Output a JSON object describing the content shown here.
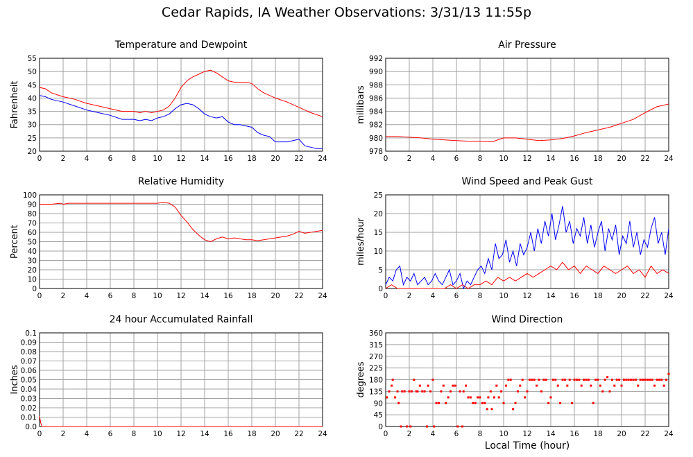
{
  "title": "Cedar Rapids, IA Weather Observations: 3/31/13 11:55p",
  "xaxis_label": "Local Time (hour)",
  "colors": {
    "red": "#ff0000",
    "blue": "#0000ff",
    "grid": "#a0a0a0"
  },
  "chart_data": [
    {
      "id": "temp",
      "type": "line",
      "title": "Temperature and Dewpoint",
      "ylabel": "Fahrenheit",
      "xlim": [
        0,
        24
      ],
      "ylim": [
        20,
        55
      ],
      "yticks": [
        20,
        25,
        30,
        35,
        40,
        45,
        50,
        55
      ],
      "xticks": [
        0,
        2,
        4,
        6,
        8,
        10,
        12,
        14,
        16,
        18,
        20,
        22,
        24
      ],
      "series": [
        {
          "color": "#ff0000",
          "x": [
            0,
            0.5,
            1,
            2,
            3,
            4,
            5,
            6,
            7,
            8,
            8.5,
            9,
            9.5,
            10,
            10.5,
            11,
            11.5,
            12,
            12.5,
            13,
            13.5,
            14,
            14.5,
            15,
            15.5,
            16,
            16.5,
            17,
            17.5,
            18,
            18.5,
            19,
            20,
            21,
            22,
            23,
            24
          ],
          "y": [
            44,
            43.5,
            42,
            40.5,
            39.5,
            38,
            37,
            36,
            35,
            35,
            34.5,
            35,
            34.5,
            35,
            35.5,
            37,
            40,
            44,
            46.5,
            48,
            49,
            50,
            50.5,
            49.5,
            48,
            46.5,
            46,
            46,
            46,
            45.5,
            43.5,
            42,
            40,
            38.5,
            36.5,
            34.5,
            33
          ]
        },
        {
          "color": "#0000ff",
          "x": [
            0,
            0.5,
            1,
            2,
            3,
            4,
            5,
            6,
            7,
            8,
            8.5,
            9,
            9.5,
            10,
            10.5,
            11,
            11.5,
            12,
            12.5,
            13,
            13.5,
            14,
            14.5,
            15,
            15.5,
            16,
            16.5,
            17,
            17.5,
            18,
            18.5,
            19,
            19.5,
            20,
            20.5,
            21,
            21.5,
            22,
            22.5,
            23,
            23.5,
            24
          ],
          "y": [
            41,
            40.5,
            39.5,
            38.5,
            37,
            35.5,
            34.5,
            33.5,
            32,
            32,
            31.5,
            32,
            31.5,
            32.5,
            33,
            34,
            36,
            37.5,
            38,
            37.5,
            36,
            34,
            33,
            32.5,
            33,
            31,
            30,
            30,
            29.5,
            29,
            27,
            26,
            25.5,
            23.5,
            23.5,
            23.5,
            24,
            24.5,
            22,
            21.5,
            21,
            21
          ]
        }
      ]
    },
    {
      "id": "pressure",
      "type": "line",
      "title": "Air Pressure",
      "ylabel": "millibars",
      "xlim": [
        0,
        24
      ],
      "ylim": [
        978,
        992
      ],
      "yticks": [
        978,
        980,
        982,
        984,
        986,
        988,
        990,
        992
      ],
      "xticks": [
        0,
        2,
        4,
        6,
        8,
        10,
        12,
        14,
        16,
        18,
        20,
        22,
        24
      ],
      "series": [
        {
          "color": "#ff0000",
          "x": [
            0,
            1,
            2,
            3,
            4,
            5,
            6,
            7,
            8,
            9,
            10,
            11,
            12,
            13,
            14,
            15,
            16,
            17,
            18,
            19,
            20,
            21,
            22,
            23,
            24
          ],
          "y": [
            980.2,
            980.2,
            980.1,
            980.0,
            979.8,
            979.7,
            979.6,
            979.5,
            979.5,
            979.4,
            980.0,
            980.0,
            979.8,
            979.6,
            979.7,
            979.9,
            980.3,
            980.8,
            981.2,
            981.6,
            982.2,
            982.8,
            983.8,
            984.7,
            985.1
          ]
        }
      ]
    },
    {
      "id": "rh",
      "type": "line",
      "title": "Relative Humidity",
      "ylabel": "Percent",
      "xlim": [
        0,
        24
      ],
      "ylim": [
        0,
        100
      ],
      "yticks": [
        0,
        10,
        20,
        30,
        40,
        50,
        60,
        70,
        80,
        90,
        100
      ],
      "xticks": [
        0,
        2,
        4,
        6,
        8,
        10,
        12,
        14,
        16,
        18,
        20,
        22,
        24
      ],
      "series": [
        {
          "color": "#ff0000",
          "x": [
            0,
            1,
            1.8,
            2,
            2.5,
            3,
            4,
            5,
            6,
            7,
            8,
            9,
            10,
            10.5,
            11,
            11.5,
            12,
            12.5,
            13,
            13.5,
            14,
            14.5,
            15,
            15.5,
            16,
            16.5,
            17,
            17.5,
            18,
            18.5,
            19,
            19.5,
            20,
            20.5,
            21,
            21.5,
            22,
            22.5,
            23,
            23.5,
            24
          ],
          "y": [
            90,
            90,
            91,
            90,
            91,
            91,
            91,
            91,
            91,
            91,
            91,
            91,
            91,
            92,
            91,
            87,
            78,
            71,
            63,
            57,
            52,
            50,
            53,
            55,
            53,
            54,
            53,
            52,
            52,
            51,
            52,
            53,
            54,
            55,
            56,
            58,
            61,
            59,
            60,
            61,
            62
          ]
        }
      ]
    },
    {
      "id": "wind",
      "type": "line",
      "title": "Wind Speed and Peak Gust",
      "ylabel": "miles/hour",
      "xlim": [
        0,
        24
      ],
      "ylim": [
        0,
        25
      ],
      "yticks": [
        0,
        5,
        10,
        15,
        20,
        25
      ],
      "xticks": [
        0,
        2,
        4,
        6,
        8,
        10,
        12,
        14,
        16,
        18,
        20,
        22,
        24
      ],
      "series": [
        {
          "color": "#0000ff",
          "x": [
            0,
            0.3,
            0.6,
            0.9,
            1.2,
            1.5,
            1.8,
            2.1,
            2.4,
            2.7,
            3,
            3.3,
            3.6,
            3.9,
            4.2,
            4.5,
            4.8,
            5.1,
            5.4,
            5.7,
            6,
            6.3,
            6.6,
            6.9,
            7.2,
            7.5,
            7.8,
            8.1,
            8.4,
            8.7,
            9,
            9.3,
            9.6,
            9.9,
            10.2,
            10.5,
            10.8,
            11.1,
            11.4,
            11.7,
            12,
            12.3,
            12.6,
            12.9,
            13.2,
            13.5,
            13.8,
            14.1,
            14.4,
            14.7,
            15,
            15.3,
            15.6,
            15.9,
            16.2,
            16.5,
            16.8,
            17.1,
            17.4,
            17.7,
            18,
            18.3,
            18.6,
            18.9,
            19.2,
            19.5,
            19.8,
            20.1,
            20.4,
            20.7,
            21,
            21.3,
            21.6,
            21.9,
            22.2,
            22.5,
            22.8,
            23.1,
            23.4,
            23.7,
            24
          ],
          "y": [
            1,
            3,
            2,
            5,
            6,
            1,
            3,
            2,
            4,
            1,
            2,
            3,
            1,
            2,
            4,
            2,
            1,
            3,
            5,
            1,
            2,
            4,
            0,
            2,
            1,
            3,
            5,
            6,
            4,
            8,
            5,
            12,
            8,
            9,
            13,
            7,
            10,
            6,
            12,
            9,
            11,
            15,
            10,
            16,
            12,
            18,
            14,
            20,
            13,
            17,
            22,
            15,
            18,
            12,
            16,
            14,
            19,
            12,
            17,
            11,
            15,
            18,
            10,
            16,
            13,
            17,
            9,
            14,
            12,
            18,
            11,
            15,
            9,
            13,
            11,
            16,
            19,
            12,
            15,
            9,
            16
          ]
        },
        {
          "color": "#ff0000",
          "x": [
            0,
            0.5,
            1,
            1.5,
            2,
            2.5,
            3,
            3.5,
            4,
            4.5,
            5,
            5.5,
            6,
            6.5,
            7,
            7.5,
            8,
            8.5,
            9,
            9.5,
            10,
            10.5,
            11,
            11.5,
            12,
            12.5,
            13,
            13.5,
            14,
            14.5,
            15,
            15.5,
            16,
            16.5,
            17,
            17.5,
            18,
            18.5,
            19,
            19.5,
            20,
            20.5,
            21,
            21.5,
            22,
            22.5,
            23,
            23.5,
            24
          ],
          "y": [
            0,
            1,
            0,
            0,
            0,
            0,
            0,
            0,
            0,
            0,
            0,
            1,
            0,
            1,
            0,
            1,
            1,
            2,
            1,
            3,
            2,
            3,
            2,
            3,
            4,
            3,
            4,
            5,
            6,
            5,
            7,
            5,
            6,
            4,
            6,
            5,
            4,
            6,
            5,
            4,
            5,
            6,
            4,
            5,
            3,
            6,
            4,
            5,
            4
          ]
        }
      ]
    },
    {
      "id": "rain",
      "type": "line",
      "title": "24 hour Accumulated Rainfall",
      "ylabel": "Inches",
      "xlim": [
        0,
        24
      ],
      "ylim": [
        0,
        0.1
      ],
      "yticks": [
        "0.0",
        "0.01",
        "0.02",
        "0.03",
        "0.04",
        "0.05",
        "0.06",
        "0.07",
        "0.08",
        "0.09",
        "0.1"
      ],
      "xticks": [
        0,
        2,
        4,
        6,
        8,
        10,
        12,
        14,
        16,
        18,
        20,
        22,
        24
      ],
      "series": [
        {
          "color": "#ff0000",
          "x": [
            0,
            0.1,
            0.2,
            24
          ],
          "y": [
            0.011,
            0.004,
            0,
            0
          ]
        }
      ]
    },
    {
      "id": "dir",
      "type": "scatter",
      "title": "Wind Direction",
      "ylabel": "degrees",
      "xlim": [
        0,
        24
      ],
      "ylim": [
        0,
        360
      ],
      "yticks": [
        0,
        45,
        90,
        135,
        180,
        225,
        270,
        315,
        360
      ],
      "xticks": [
        0,
        2,
        4,
        6,
        8,
        10,
        12,
        14,
        16,
        18,
        20,
        22,
        24
      ],
      "series": [
        {
          "color": "#ff0000",
          "x": [
            0.1,
            0.3,
            0.5,
            0.6,
            0.8,
            1.0,
            1.1,
            1.3,
            1.4,
            1.6,
            1.8,
            2.0,
            2.1,
            2.2,
            2.4,
            2.6,
            2.7,
            2.9,
            3.1,
            3.3,
            3.5,
            3.6,
            3.8,
            4.0,
            4.1,
            4.3,
            4.5,
            4.7,
            4.9,
            5.1,
            5.3,
            5.5,
            5.7,
            5.9,
            6.1,
            6.3,
            6.5,
            6.6,
            6.8,
            7.0,
            7.2,
            7.4,
            7.6,
            7.8,
            8.0,
            8.2,
            8.4,
            8.6,
            8.7,
            8.9,
            9.0,
            9.2,
            9.4,
            9.6,
            9.8,
            10.0,
            10.2,
            10.4,
            10.6,
            10.8,
            11.0,
            11.2,
            11.4,
            11.6,
            11.8,
            12.0,
            12.2,
            12.4,
            12.6,
            12.8,
            13.0,
            13.2,
            13.4,
            13.6,
            13.8,
            14.0,
            14.2,
            14.4,
            14.6,
            14.8,
            15.0,
            15.2,
            15.4,
            15.6,
            15.8,
            16.0,
            16.2,
            16.4,
            16.6,
            16.8,
            17.0,
            17.2,
            17.4,
            17.6,
            17.8,
            18.0,
            18.2,
            18.4,
            18.6,
            18.8,
            19.0,
            19.2,
            19.4,
            19.6,
            19.8,
            20.0,
            20.2,
            20.4,
            20.6,
            20.8,
            21.0,
            21.2,
            21.4,
            21.6,
            21.8,
            22.0,
            22.2,
            22.4,
            22.6,
            22.8,
            23.0,
            23.2,
            23.4,
            23.6,
            23.8,
            24.0
          ],
          "y": [
            112,
            135,
            157,
            180,
            112,
            135,
            90,
            0,
            135,
            135,
            0,
            135,
            0,
            135,
            180,
            135,
            135,
            157,
            135,
            135,
            0,
            157,
            135,
            180,
            0,
            90,
            90,
            135,
            157,
            90,
            112,
            135,
            157,
            157,
            0,
            135,
            0,
            135,
            157,
            112,
            112,
            90,
            90,
            112,
            112,
            90,
            90,
            67,
            112,
            135,
            67,
            112,
            157,
            112,
            135,
            90,
            157,
            180,
            180,
            67,
            90,
            135,
            157,
            180,
            112,
            135,
            180,
            180,
            180,
            157,
            180,
            135,
            180,
            180,
            90,
            112,
            180,
            180,
            157,
            90,
            180,
            180,
            157,
            180,
            90,
            180,
            180,
            180,
            157,
            180,
            180,
            180,
            157,
            90,
            180,
            180,
            157,
            135,
            180,
            190,
            135,
            180,
            157,
            180,
            180,
            157,
            180,
            180,
            180,
            180,
            180,
            180,
            157,
            180,
            180,
            180,
            180,
            180,
            180,
            157,
            180,
            180,
            180,
            157,
            180,
            202
          ]
        }
      ]
    }
  ]
}
